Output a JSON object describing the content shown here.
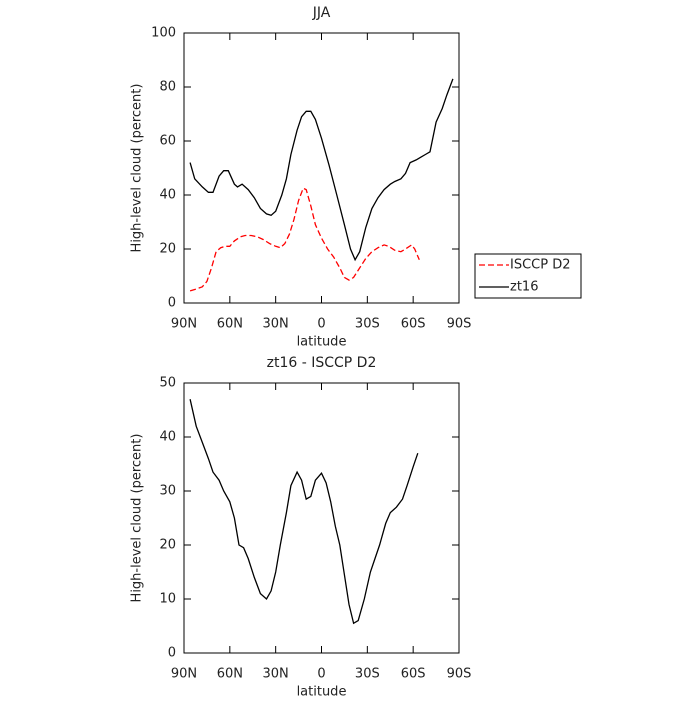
{
  "chart_data": [
    {
      "type": "line",
      "title": "JJA",
      "xlabel": "latitude",
      "ylabel": "High-level cloud (percent)",
      "xlim": [
        90,
        -90
      ],
      "xticks": [
        {
          "value": 90,
          "label": "90N"
        },
        {
          "value": 60,
          "label": "60N"
        },
        {
          "value": 30,
          "label": "30N"
        },
        0,
        {
          "value": -30,
          "label": "30S"
        },
        {
          "value": -60,
          "label": "60S"
        },
        {
          "value": -90,
          "label": "90S"
        }
      ],
      "ylim": [
        0,
        100
      ],
      "yticks": [
        0,
        20,
        40,
        60,
        80,
        100
      ],
      "legend": "right",
      "series": [
        {
          "name": "ISCCP D2",
          "color": "#ff0000",
          "linestyle": "dashed",
          "x": [
            86,
            83,
            78,
            75,
            72,
            69,
            66,
            63,
            60,
            57,
            53,
            50,
            46,
            42,
            38,
            34,
            30,
            27,
            24,
            21,
            18,
            15,
            12,
            10,
            7,
            4,
            0,
            -4,
            -8,
            -12,
            -15,
            -18,
            -21,
            -25,
            -29,
            -33,
            -37,
            -41,
            -44,
            -48,
            -52,
            -55,
            -59,
            -61,
            -64
          ],
          "values": [
            4.5,
            5,
            6,
            8,
            13,
            19,
            20.5,
            21,
            21,
            23,
            24.5,
            25,
            25,
            24.5,
            23.5,
            22,
            21,
            20.5,
            22,
            25.5,
            31,
            38,
            42.5,
            42,
            36,
            29,
            24,
            20,
            17,
            13,
            9.5,
            8.5,
            9.5,
            13,
            16.5,
            19,
            20.5,
            21.5,
            21,
            19.5,
            19,
            20,
            21.5,
            20,
            16
          ]
        },
        {
          "name": "zt16",
          "color": "#000000",
          "linestyle": "solid",
          "x": [
            86,
            83,
            78,
            74,
            71,
            67,
            64,
            61,
            57,
            55,
            52,
            48,
            44,
            40,
            36,
            33,
            30,
            26,
            23,
            20,
            16,
            13,
            10,
            7,
            4,
            0,
            -5,
            -10,
            -15,
            -19,
            -22,
            -25,
            -29,
            -33,
            -37,
            -41,
            -45,
            -48,
            -52,
            -55,
            -58,
            -62,
            -65,
            -68,
            -71,
            -75,
            -79,
            -82,
            -86
          ],
          "values": [
            52,
            46,
            43,
            41,
            41,
            47,
            49,
            49,
            44,
            43,
            44,
            42,
            39,
            35,
            33,
            32.5,
            34,
            40,
            46,
            55,
            64,
            69,
            71,
            71,
            68,
            61,
            51,
            40,
            29,
            20,
            16,
            19,
            28,
            35,
            39,
            42,
            44,
            45,
            46,
            48,
            52,
            53,
            54,
            55,
            56,
            67,
            72,
            77,
            83
          ]
        }
      ]
    },
    {
      "type": "line",
      "title": "zt16 - ISCCP D2",
      "xlabel": "latitude",
      "ylabel": "High-level cloud (percent)",
      "xlim": [
        90,
        -90
      ],
      "xticks": [
        {
          "value": 90,
          "label": "90N"
        },
        {
          "value": 60,
          "label": "60N"
        },
        {
          "value": 30,
          "label": "30N"
        },
        0,
        {
          "value": -30,
          "label": "30S"
        },
        {
          "value": -60,
          "label": "60S"
        },
        {
          "value": -90,
          "label": "90S"
        }
      ],
      "ylim": [
        0,
        50
      ],
      "yticks": [
        0,
        10,
        20,
        30,
        40,
        50
      ],
      "series": [
        {
          "color": "#000000",
          "linestyle": "solid",
          "x": [
            86,
            82,
            78,
            74,
            71,
            67,
            64,
            60,
            57,
            54,
            51,
            48,
            44,
            40,
            36,
            33,
            30,
            27,
            23,
            20,
            16,
            13,
            10,
            7,
            4,
            0,
            -3,
            -6,
            -9,
            -12,
            -15,
            -18,
            -21,
            -24,
            -28,
            -32,
            -35,
            -38,
            -42,
            -45,
            -49,
            -53,
            -56,
            -60,
            -63
          ],
          "values": [
            47,
            42,
            39,
            36,
            33.5,
            32,
            30,
            28,
            25,
            20,
            19.5,
            17.5,
            14,
            11,
            10,
            11.5,
            15,
            20,
            26,
            31,
            33.5,
            32,
            28.5,
            29,
            32,
            33.3,
            31.5,
            28,
            23.5,
            20,
            14.5,
            9,
            5.5,
            6,
            10,
            15,
            17.5,
            20,
            24,
            26,
            27,
            28.5,
            31,
            34.5,
            37
          ]
        }
      ]
    }
  ]
}
